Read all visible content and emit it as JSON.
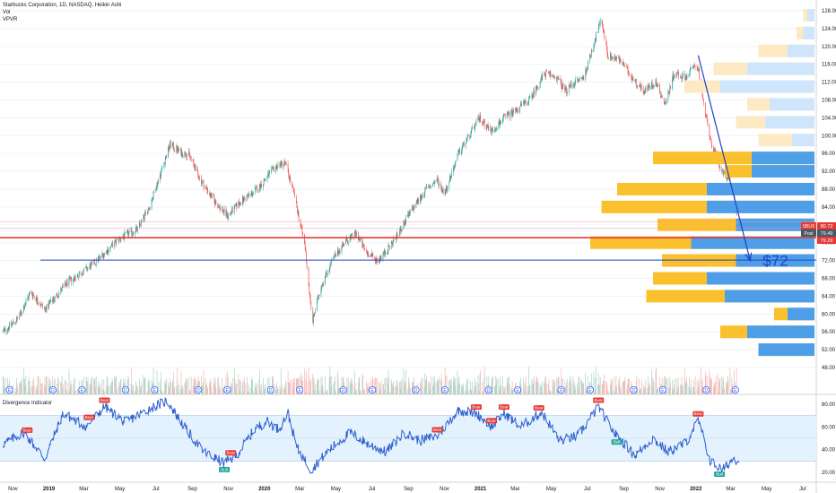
{
  "header": {
    "title": "Starbucks Corporation, 1D, NASDAQ, Heikin Ashi",
    "vol_label": "Vol",
    "vpvr_label": "VPVR"
  },
  "colors": {
    "up": "#26a69a",
    "down": "#ef5350",
    "volume_up": "#fbc02d",
    "volume_down": "#90caf9",
    "arrow": "#1e40c8",
    "support_line": "#1e40c8",
    "red_line": "#e53935",
    "rsi_line": "#2f5fd0",
    "rsi_band": "#e3f2fd"
  },
  "chart_data": [
    {
      "type": "candlestick",
      "title": "Starbucks Corporation, 1D, NASDAQ, Heikin Ashi",
      "x": [
        "Nov",
        "2019",
        "Mar",
        "May",
        "Jul",
        "Sep",
        "Nov",
        "2020",
        "Mar",
        "May",
        "Jul",
        "Sep",
        "Nov",
        "2021",
        "Mar",
        "May",
        "Jul",
        "Sep",
        "Nov",
        "2022",
        "Mar",
        "May",
        "Jul"
      ],
      "price_axis_ticks": [
        "128.00",
        "124.00",
        "120.00",
        "116.00",
        "112.00",
        "108.00",
        "104.00",
        "100.00",
        "96.00",
        "92.00",
        "88.00",
        "84.00",
        "80.00",
        "76.00",
        "72.00",
        "68.00",
        "64.00",
        "60.00",
        "56.00",
        "52.00",
        "48.00"
      ],
      "ylim": [
        48,
        128
      ],
      "anchor_points": [
        {
          "t": "2018-10-15",
          "price": 56
        },
        {
          "t": "2018-11-10",
          "price": 59
        },
        {
          "t": "2018-12-01",
          "price": 65
        },
        {
          "t": "2018-12-25",
          "price": 61
        },
        {
          "t": "2019-02-01",
          "price": 67
        },
        {
          "t": "2019-03-15",
          "price": 71
        },
        {
          "t": "2019-05-01",
          "price": 77
        },
        {
          "t": "2019-05-31",
          "price": 79
        },
        {
          "t": "2019-06-20",
          "price": 84
        },
        {
          "t": "2019-07-10",
          "price": 92
        },
        {
          "t": "2019-07-25",
          "price": 98
        },
        {
          "t": "2019-08-15",
          "price": 96
        },
        {
          "t": "2019-08-25",
          "price": 96
        },
        {
          "t": "2019-09-15",
          "price": 90
        },
        {
          "t": "2019-10-10",
          "price": 85
        },
        {
          "t": "2019-10-31",
          "price": 82
        },
        {
          "t": "2019-11-20",
          "price": 85
        },
        {
          "t": "2019-12-20",
          "price": 88
        },
        {
          "t": "2020-01-20",
          "price": 93
        },
        {
          "t": "2020-02-05",
          "price": 94
        },
        {
          "t": "2020-02-20",
          "price": 87
        },
        {
          "t": "2020-03-10",
          "price": 75
        },
        {
          "t": "2020-03-22",
          "price": 58
        },
        {
          "t": "2020-04-05",
          "price": 66
        },
        {
          "t": "2020-04-25",
          "price": 72
        },
        {
          "t": "2020-05-15",
          "price": 76
        },
        {
          "t": "2020-06-05",
          "price": 78
        },
        {
          "t": "2020-06-20",
          "price": 74
        },
        {
          "t": "2020-07-10",
          "price": 72
        },
        {
          "t": "2020-07-25",
          "price": 74
        },
        {
          "t": "2020-08-15",
          "price": 78
        },
        {
          "t": "2020-09-05",
          "price": 83
        },
        {
          "t": "2020-10-01",
          "price": 88
        },
        {
          "t": "2020-10-20",
          "price": 90
        },
        {
          "t": "2020-11-01",
          "price": 87
        },
        {
          "t": "2020-11-25",
          "price": 96
        },
        {
          "t": "2020-12-31",
          "price": 104
        },
        {
          "t": "2021-01-20",
          "price": 101
        },
        {
          "t": "2021-02-10",
          "price": 104
        },
        {
          "t": "2021-03-05",
          "price": 106
        },
        {
          "t": "2021-03-25",
          "price": 108
        },
        {
          "t": "2021-04-20",
          "price": 114
        },
        {
          "t": "2021-05-10",
          "price": 113
        },
        {
          "t": "2021-05-25",
          "price": 110
        },
        {
          "t": "2021-06-10",
          "price": 112
        },
        {
          "t": "2021-06-25",
          "price": 113
        },
        {
          "t": "2021-07-15",
          "price": 122
        },
        {
          "t": "2021-07-25",
          "price": 126
        },
        {
          "t": "2021-08-05",
          "price": 118
        },
        {
          "t": "2021-08-25",
          "price": 117
        },
        {
          "t": "2021-09-15",
          "price": 113
        },
        {
          "t": "2021-10-05",
          "price": 110
        },
        {
          "t": "2021-10-25",
          "price": 112
        },
        {
          "t": "2021-11-10",
          "price": 107
        },
        {
          "t": "2021-11-25",
          "price": 114
        },
        {
          "t": "2021-12-15",
          "price": 113
        },
        {
          "t": "2021-12-31",
          "price": 116
        },
        {
          "t": "2022-01-05",
          "price": 115
        },
        {
          "t": "2022-01-15",
          "price": 106
        },
        {
          "t": "2022-01-28",
          "price": 98
        },
        {
          "t": "2022-02-10",
          "price": 93
        },
        {
          "t": "2022-02-22",
          "price": 91
        },
        {
          "t": "2022-03-05",
          "price": 87
        },
        {
          "t": "2022-03-12",
          "price": 82
        }
      ],
      "price_labels": [
        {
          "label": "SBUX",
          "value": "80.72"
        },
        {
          "label": "Post",
          "value": "79.49"
        },
        {
          "label": "",
          "value": "79.29"
        }
      ],
      "horizontal_lines": [
        {
          "name": "red-level",
          "price": 77.1
        },
        {
          "name": "blue-support",
          "price": 72.1
        }
      ],
      "arrow": {
        "from_t": "2022-01-05",
        "from_price": 118,
        "to_t": "2022-04-03",
        "to_price": 72
      },
      "annotation": "$72",
      "volume_profile": [
        {
          "price": 127,
          "up": 0.05,
          "down": 0.03
        },
        {
          "price": 123,
          "up": 0.08,
          "down": 0.05
        },
        {
          "price": 119,
          "up": 0.25,
          "down": 0.12
        },
        {
          "price": 115,
          "up": 0.45,
          "down": 0.3
        },
        {
          "price": 111,
          "up": 0.58,
          "down": 0.42
        },
        {
          "price": 107,
          "up": 0.3,
          "down": 0.2
        },
        {
          "price": 103,
          "up": 0.35,
          "down": 0.22
        },
        {
          "price": 99,
          "up": 0.25,
          "down": 0.1
        },
        {
          "price": 95,
          "up": 0.72,
          "down": 0.28
        },
        {
          "price": 92,
          "up": 0.4,
          "down": 0.28
        },
        {
          "price": 88,
          "up": 0.88,
          "down": 0.48
        },
        {
          "price": 84,
          "up": 0.95,
          "down": 0.48
        },
        {
          "price": 80,
          "up": 0.7,
          "down": 0.35
        },
        {
          "price": 76,
          "up": 1.0,
          "down": 0.55
        },
        {
          "price": 72,
          "up": 0.68,
          "down": 0.35
        },
        {
          "price": 68,
          "up": 0.72,
          "down": 0.48
        },
        {
          "price": 64,
          "up": 0.75,
          "down": 0.4
        },
        {
          "price": 60,
          "up": 0.18,
          "down": 0.12
        },
        {
          "price": 56,
          "up": 0.42,
          "down": 0.3
        },
        {
          "price": 52,
          "up": 0.25,
          "down": 0.25
        }
      ]
    },
    {
      "type": "line",
      "title": "Divergence Indicator",
      "ylim": [
        10,
        90
      ],
      "y_ticks": [
        "80.00",
        "60.00",
        "40.00",
        "20.00"
      ],
      "band": [
        30,
        70
      ],
      "anchor_points": [
        {
          "t": "2018-10-15",
          "v": 45
        },
        {
          "t": "2018-11-20",
          "v": 55
        },
        {
          "t": "2018-12-25",
          "v": 32
        },
        {
          "t": "2019-01-25",
          "v": 72
        },
        {
          "t": "2019-03-05",
          "v": 60
        },
        {
          "t": "2019-04-05",
          "v": 78
        },
        {
          "t": "2019-05-10",
          "v": 64
        },
        {
          "t": "2019-06-20",
          "v": 76
        },
        {
          "t": "2019-07-20",
          "v": 83
        },
        {
          "t": "2019-08-25",
          "v": 55
        },
        {
          "t": "2019-09-20",
          "v": 38
        },
        {
          "t": "2019-10-25",
          "v": 28
        },
        {
          "t": "2019-11-15",
          "v": 35
        },
        {
          "t": "2019-12-15",
          "v": 58
        },
        {
          "t": "2020-01-05",
          "v": 65
        },
        {
          "t": "2020-01-25",
          "v": 58
        },
        {
          "t": "2020-02-10",
          "v": 72
        },
        {
          "t": "2020-02-25",
          "v": 42
        },
        {
          "t": "2020-03-20",
          "v": 22
        },
        {
          "t": "2020-04-20",
          "v": 40
        },
        {
          "t": "2020-05-25",
          "v": 55
        },
        {
          "t": "2020-06-25",
          "v": 45
        },
        {
          "t": "2020-07-25",
          "v": 38
        },
        {
          "t": "2020-08-25",
          "v": 55
        },
        {
          "t": "2020-09-20",
          "v": 48
        },
        {
          "t": "2020-10-20",
          "v": 52
        },
        {
          "t": "2020-11-25",
          "v": 75
        },
        {
          "t": "2020-12-25",
          "v": 72
        },
        {
          "t": "2021-01-20",
          "v": 60
        },
        {
          "t": "2021-02-10",
          "v": 72
        },
        {
          "t": "2021-03-10",
          "v": 60
        },
        {
          "t": "2021-04-15",
          "v": 73
        },
        {
          "t": "2021-05-15",
          "v": 48
        },
        {
          "t": "2021-06-15",
          "v": 52
        },
        {
          "t": "2021-07-20",
          "v": 78
        },
        {
          "t": "2021-08-15",
          "v": 55
        },
        {
          "t": "2021-09-20",
          "v": 35
        },
        {
          "t": "2021-10-20",
          "v": 50
        },
        {
          "t": "2021-11-15",
          "v": 38
        },
        {
          "t": "2021-12-15",
          "v": 46
        },
        {
          "t": "2022-01-05",
          "v": 66
        },
        {
          "t": "2022-01-25",
          "v": 30
        },
        {
          "t": "2022-02-15",
          "v": 22
        },
        {
          "t": "2022-03-05",
          "v": 32
        },
        {
          "t": "2022-03-15",
          "v": 30
        }
      ],
      "signals": [
        {
          "t": "2018-11-25",
          "label": "Bear"
        },
        {
          "t": "2019-03-10",
          "label": "Bear"
        },
        {
          "t": "2019-04-05",
          "label": "Bear"
        },
        {
          "t": "2019-10-25",
          "label": "Bull"
        },
        {
          "t": "2019-11-05",
          "label": "Bear"
        },
        {
          "t": "2020-10-20",
          "label": "Bear"
        },
        {
          "t": "2020-12-25",
          "label": "Bear"
        },
        {
          "t": "2021-01-20",
          "label": "Bear"
        },
        {
          "t": "2021-02-10",
          "label": "Bear"
        },
        {
          "t": "2021-04-10",
          "label": "Bear"
        },
        {
          "t": "2021-07-20",
          "label": "Bear"
        },
        {
          "t": "2021-08-20",
          "label": "Bull"
        },
        {
          "t": "2022-01-05",
          "label": "Bear"
        },
        {
          "t": "2022-02-10",
          "label": "Bull"
        }
      ]
    }
  ],
  "event_markers": [
    "E",
    "D",
    "E",
    "D",
    "E",
    "D",
    "E",
    "D",
    "E",
    "D",
    "E",
    "D",
    "E",
    "D",
    "E",
    "D",
    "E",
    "D",
    "E",
    "D",
    "E"
  ]
}
